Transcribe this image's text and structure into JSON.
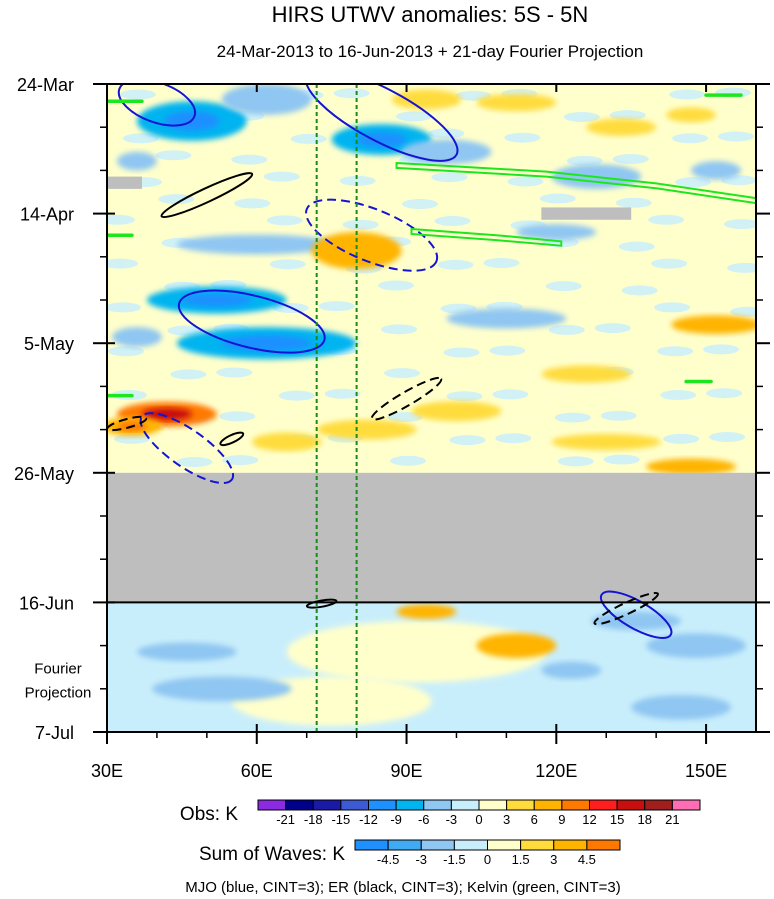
{
  "chart_data": {
    "type": "heatmap",
    "title": "HIRS UTWV anomalies: 5S - 5N",
    "subtitle": "24-Mar-2013 to 16-Jun-2013 + 21-day Fourier Projection",
    "xlim": [
      30,
      160
    ],
    "x_ticks": [
      30,
      60,
      90,
      120,
      150
    ],
    "x_tick_labels": [
      "30E",
      "60E",
      "90E",
      "120E",
      "150E"
    ],
    "time_range_days": [
      0,
      105
    ],
    "y_ticks_days": [
      0,
      21,
      42,
      63,
      84,
      105
    ],
    "y_tick_labels": [
      "24-Mar",
      "14-Apr",
      "5-May",
      "26-May",
      "16-Jun",
      "7-Jul"
    ],
    "projection_label": [
      "Fourier",
      "Projection"
    ],
    "missing_data_days": [
      63,
      84
    ],
    "projection_start_day": 84,
    "reference_longitudes": [
      72,
      80
    ],
    "colors": {
      "missing": "#bebebe",
      "mjo": "#1414d2",
      "er": "#000000",
      "kelvin": "#1ee61e",
      "reference": "#1a8a1a"
    },
    "obs_colorbar": {
      "label": "Obs: K",
      "levels": [
        "-21",
        "-18",
        "-15",
        "-12",
        "-9",
        "-6",
        "-3",
        "0",
        "3",
        "6",
        "9",
        "12",
        "15",
        "18",
        "21"
      ],
      "colors": [
        "#8a2be2",
        "#00008b",
        "#1a1aa6",
        "#3c5ad2",
        "#1e90ff",
        "#00b4f0",
        "#8fc6f2",
        "#c9eefb",
        "#ffffcc",
        "#ffdc3c",
        "#ffb400",
        "#ff7800",
        "#ff1e1e",
        "#c80f0f",
        "#a01e1e",
        "#ff6eb4"
      ]
    },
    "waves_colorbar": {
      "label": "Sum of Waves: K",
      "levels": [
        "-4.5",
        "-3",
        "-1.5",
        "0",
        "1.5",
        "3",
        "4.5"
      ],
      "colors": [
        "#1e90ff",
        "#41aaf5",
        "#8fc6f2",
        "#c9eefb",
        "#ffffcc",
        "#ffdc3c",
        "#ffb400",
        "#ff7800"
      ]
    },
    "obs_anomalies": [
      {
        "lon": 47,
        "day": 6,
        "rlon": 11,
        "rday": 3.2,
        "value": -8
      },
      {
        "lon": 62,
        "day": 2.5,
        "rlon": 9,
        "rday": 2.5,
        "value": -6
      },
      {
        "lon": 85,
        "day": 9,
        "rlon": 10,
        "rday": 2.5,
        "value": -7
      },
      {
        "lon": 98,
        "day": 11,
        "rlon": 9,
        "rday": 2,
        "value": -6
      },
      {
        "lon": 128,
        "day": 15,
        "rlon": 9,
        "rday": 2,
        "value": -6
      },
      {
        "lon": 152,
        "day": 14,
        "rlon": 5,
        "rday": 1.5,
        "value": -4
      },
      {
        "lon": 36,
        "day": 12.5,
        "rlon": 4,
        "rday": 1.5,
        "value": -4
      },
      {
        "lon": 60,
        "day": 26,
        "rlon": 16,
        "rday": 1.6,
        "value": -4
      },
      {
        "lon": 120,
        "day": 24,
        "rlon": 8,
        "rday": 1.3,
        "value": -4
      },
      {
        "lon": 52,
        "day": 35,
        "rlon": 14,
        "rday": 2.2,
        "value": -7
      },
      {
        "lon": 62,
        "day": 42,
        "rlon": 18,
        "rday": 2.6,
        "value": -8
      },
      {
        "lon": 36,
        "day": 41,
        "rlon": 5,
        "rday": 1.6,
        "value": -5
      },
      {
        "lon": 110,
        "day": 38,
        "rlon": 12,
        "rday": 1.6,
        "value": -4
      },
      {
        "lon": 42,
        "day": 53.5,
        "rlon": 10,
        "rday": 2,
        "value": 11
      },
      {
        "lon": 35,
        "day": 55.5,
        "rlon": 6,
        "rday": 1.5,
        "value": 8
      },
      {
        "lon": 82,
        "day": 56,
        "rlon": 10,
        "rday": 1.6,
        "value": 5
      },
      {
        "lon": 100,
        "day": 53,
        "rlon": 9,
        "rday": 1.6,
        "value": 4
      },
      {
        "lon": 66,
        "day": 58,
        "rlon": 7,
        "rday": 1.5,
        "value": 4
      },
      {
        "lon": 147,
        "day": 62,
        "rlon": 9,
        "rday": 1.3,
        "value": 6
      },
      {
        "lon": 152,
        "day": 39,
        "rlon": 9,
        "rday": 1.5,
        "value": 6
      },
      {
        "lon": 80,
        "day": 27,
        "rlon": 9,
        "rday": 3,
        "value": 6
      },
      {
        "lon": 94,
        "day": 2.5,
        "rlon": 7,
        "rday": 1.6,
        "value": 4
      },
      {
        "lon": 112,
        "day": 3,
        "rlon": 8,
        "rday": 1.4,
        "value": 4
      },
      {
        "lon": 133,
        "day": 7,
        "rlon": 7,
        "rday": 1.4,
        "value": 4
      },
      {
        "lon": 147,
        "day": 5,
        "rlon": 5,
        "rday": 1.2,
        "value": 4
      },
      {
        "lon": 130,
        "day": 58,
        "rlon": 11,
        "rday": 1.3,
        "value": 4
      },
      {
        "lon": 126,
        "day": 47,
        "rlon": 9,
        "rday": 1.4,
        "value": 3
      }
    ],
    "projection_anomalies": [
      {
        "lon": 92,
        "day": 92,
        "rlon": 26,
        "rday": 5,
        "value": 1
      },
      {
        "lon": 94,
        "day": 85.5,
        "rlon": 6,
        "rday": 1.2,
        "value": 3
      },
      {
        "lon": 75,
        "day": 100,
        "rlon": 20,
        "rday": 4,
        "value": 1
      },
      {
        "lon": 112,
        "day": 91,
        "rlon": 8,
        "rday": 2,
        "value": 3
      },
      {
        "lon": 136,
        "day": 87,
        "rlon": 9,
        "rday": 1.5,
        "value": -2
      },
      {
        "lon": 148,
        "day": 91,
        "rlon": 10,
        "rday": 2,
        "value": -3
      },
      {
        "lon": 46,
        "day": 92,
        "rlon": 10,
        "rday": 1.5,
        "value": -2
      },
      {
        "lon": 53,
        "day": 98,
        "rlon": 14,
        "rday": 2,
        "value": -2
      },
      {
        "lon": 145,
        "day": 101,
        "rlon": 10,
        "rday": 2,
        "value": -2
      },
      {
        "lon": 123,
        "day": 95,
        "rlon": 6,
        "rday": 1.4,
        "value": -2
      }
    ],
    "missing_patches": [
      {
        "lon0": 30,
        "lon1": 37,
        "day0": 15,
        "day1": 17
      },
      {
        "lon0": 117,
        "lon1": 135,
        "day0": 20,
        "day1": 22
      }
    ],
    "mjo_contours": [
      {
        "lon": 40,
        "day": 3,
        "rlon": 8,
        "rday": 3.2,
        "angle": 20,
        "dashed": false
      },
      {
        "lon": 85,
        "day": 5,
        "rlon": 17,
        "rday": 4.2,
        "angle": 28,
        "dashed": false
      },
      {
        "lon": 83,
        "day": 24.5,
        "rlon": 14,
        "rday": 4.2,
        "angle": 22,
        "dashed": true
      },
      {
        "lon": 59,
        "day": 38.5,
        "rlon": 15,
        "rday": 4.2,
        "angle": 14,
        "dashed": false
      },
      {
        "lon": 46,
        "day": 59,
        "rlon": 11,
        "rday": 3,
        "angle": 35,
        "dashed": true
      },
      {
        "lon": 136,
        "day": 86,
        "rlon": 8,
        "rday": 2.2,
        "angle": 30,
        "dashed": false
      }
    ],
    "er_contours": [
      {
        "lon": 50,
        "day": 18,
        "rlon": 10,
        "rday": 1.1,
        "angle": -25,
        "dashed": false
      },
      {
        "lon": 90,
        "day": 51,
        "rlon": 8,
        "rday": 1.1,
        "angle": -30,
        "dashed": true
      },
      {
        "lon": 34,
        "day": 55,
        "rlon": 4,
        "rday": 0.7,
        "angle": -15,
        "dashed": true
      },
      {
        "lon": 55,
        "day": 57.5,
        "rlon": 2.5,
        "rday": 0.6,
        "angle": -25,
        "dashed": false
      },
      {
        "lon": 73,
        "day": 84.2,
        "rlon": 3,
        "rday": 0.5,
        "angle": -10,
        "dashed": false
      },
      {
        "lon": 134,
        "day": 85,
        "rlon": 7,
        "rday": 0.9,
        "angle": -25,
        "dashed": true
      }
    ],
    "kelvin_contours": [
      {
        "points": [
          [
            88,
            12.8
          ],
          [
            118,
            14.2
          ],
          [
            140,
            16.1
          ],
          [
            160,
            18.5
          ],
          [
            160,
            19.3
          ],
          [
            140,
            16.9
          ],
          [
            118,
            15.0
          ],
          [
            88,
            13.6
          ]
        ]
      },
      {
        "points": [
          [
            91,
            23.5
          ],
          [
            108,
            24.5
          ],
          [
            121,
            25.5
          ],
          [
            121,
            26.2
          ],
          [
            108,
            25.3
          ],
          [
            91,
            24.3
          ]
        ]
      },
      {
        "lon0": 30,
        "lon1": 37,
        "day": 2.8
      },
      {
        "lon0": 30,
        "lon1": 35,
        "day": 24.5
      },
      {
        "lon0": 30,
        "lon1": 35,
        "day": 50.5
      },
      {
        "lon0": 150,
        "lon1": 157,
        "day": 1.8
      },
      {
        "lon0": 146,
        "lon1": 151,
        "day": 48.2
      }
    ],
    "wave_legend": "MJO (blue, CINT=3); ER (black, CINT=3); Kelvin (green, CINT=3)"
  }
}
